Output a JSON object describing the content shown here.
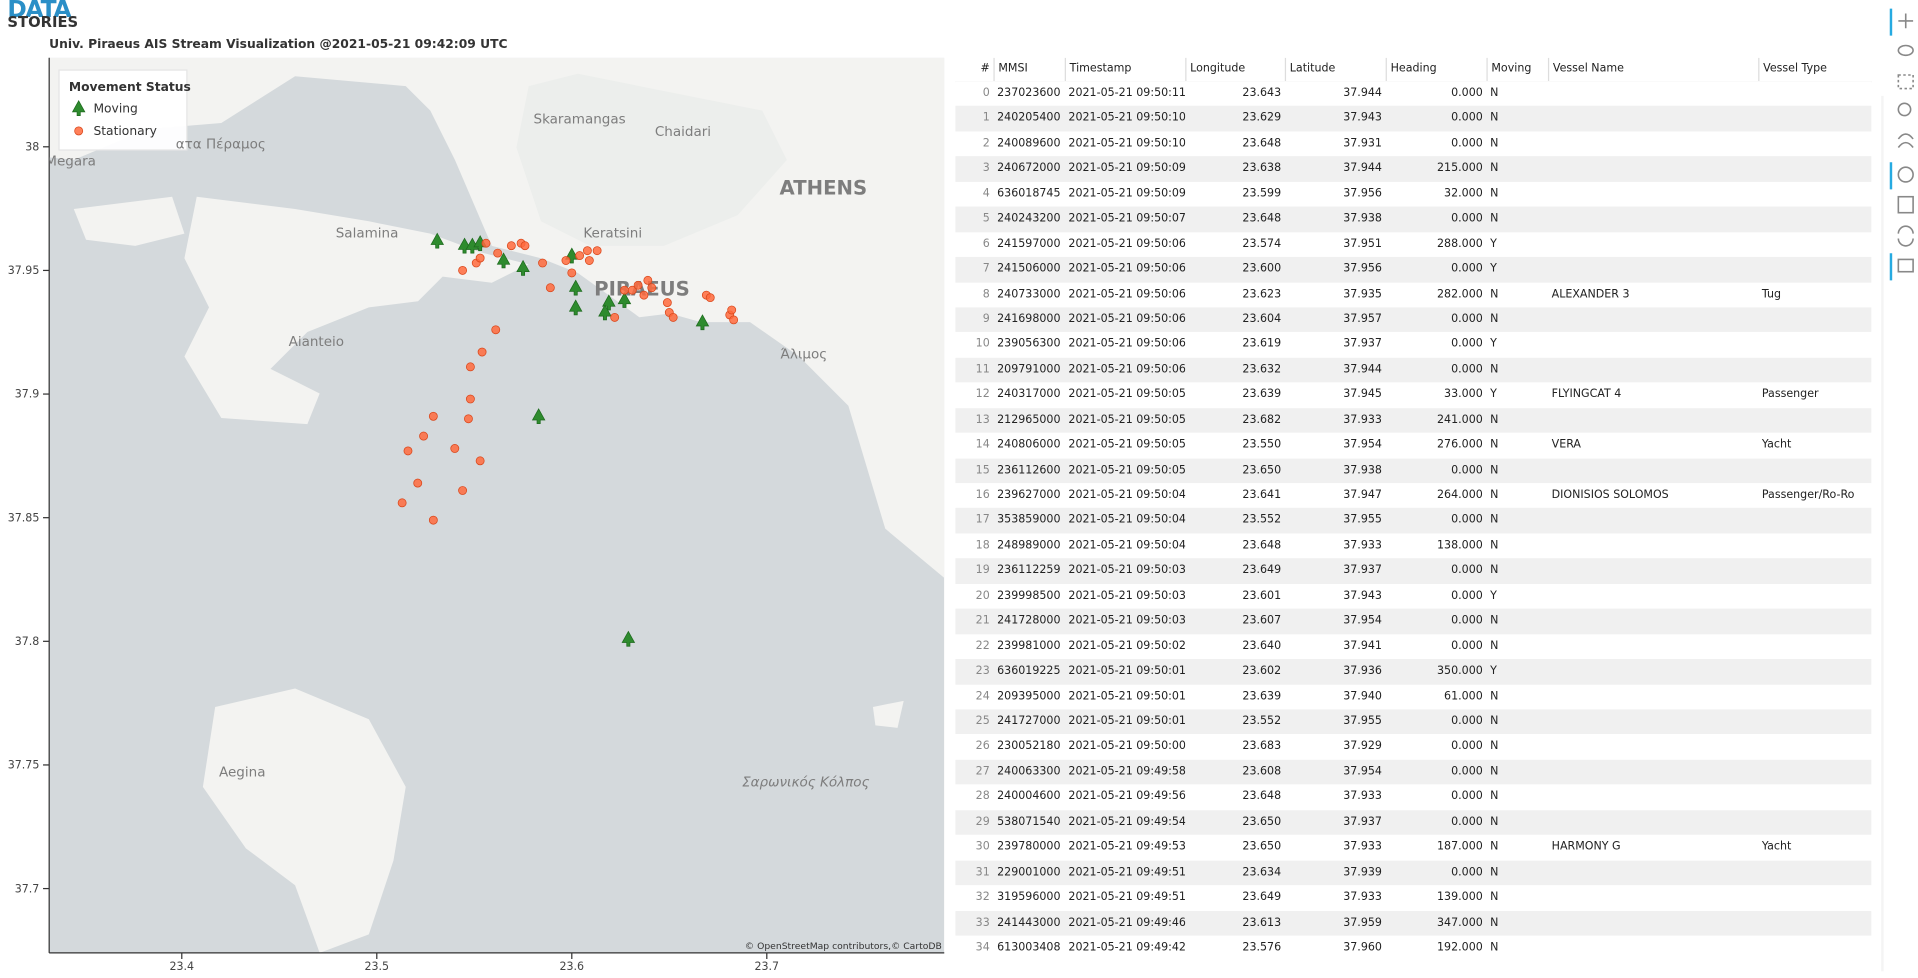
{
  "header": {
    "logo_top": "DATA",
    "logo_bottom": "STORIES",
    "title": "Univ. Piraeus AIS Stream Visualization @2021-05-21 09:42:09 UTC"
  },
  "chart_data": {
    "type": "scatter",
    "xlim": [
      23.332,
      23.791
    ],
    "ylim": [
      37.674,
      38.036
    ],
    "xticks": [
      23.4,
      23.5,
      23.6,
      23.7
    ],
    "yticks": [
      37.7,
      37.75,
      37.8,
      37.85,
      37.9,
      37.95,
      38
    ],
    "legend_title": "Movement Status",
    "legend": "top-left",
    "attribution": "© OpenStreetMap contributors,© CartoDB",
    "annotations": [
      {
        "text": "Skaramangas",
        "x": 23.604,
        "y": 38.011
      },
      {
        "text": "Chaidari",
        "x": 23.657,
        "y": 38.006
      },
      {
        "text": "ATHENS",
        "x": 23.729,
        "y": 37.983
      },
      {
        "text": "Salamina",
        "x": 23.495,
        "y": 37.965
      },
      {
        "text": "Keratsini",
        "x": 23.621,
        "y": 37.965
      },
      {
        "text": "PIRAEUS",
        "x": 23.636,
        "y": 37.942
      },
      {
        "text": "Aianteio",
        "x": 23.469,
        "y": 37.921
      },
      {
        "text": "Άλιμος",
        "x": 23.719,
        "y": 37.916
      },
      {
        "text": "Aegina",
        "x": 23.431,
        "y": 37.747
      },
      {
        "text": "Σαρωνικός Κόλπος",
        "x": 23.72,
        "y": 37.743
      },
      {
        "text": "Megara",
        "x": 23.343,
        "y": 37.994
      },
      {
        "text": "ατα Πέραμος",
        "x": 23.42,
        "y": 38.001
      }
    ],
    "series": [
      {
        "name": "Moving",
        "color": "#2e8b2e",
        "marker": "triangle",
        "x": [
          23.531,
          23.545,
          23.549,
          23.553,
          23.565,
          23.575,
          23.6,
          23.602,
          23.602,
          23.619,
          23.617,
          23.627,
          23.667,
          23.583,
          23.629
        ],
        "y": [
          37.962,
          37.96,
          37.96,
          37.961,
          37.954,
          37.951,
          37.956,
          37.943,
          37.935,
          37.937,
          37.933,
          37.938,
          37.929,
          37.891,
          37.801
        ]
      },
      {
        "name": "Stationary",
        "color": "#ff6a3d",
        "marker": "circle",
        "x": [
          23.561,
          23.554,
          23.548,
          23.548,
          23.547,
          23.54,
          23.529,
          23.524,
          23.516,
          23.553,
          23.521,
          23.544,
          23.513,
          23.529,
          23.544,
          23.551,
          23.553,
          23.556,
          23.562,
          23.569,
          23.574,
          23.576,
          23.585,
          23.589,
          23.597,
          23.6,
          23.604,
          23.608,
          23.613,
          23.609,
          23.622,
          23.627,
          23.631,
          23.634,
          23.639,
          23.641,
          23.637,
          23.649,
          23.65,
          23.652,
          23.669,
          23.671,
          23.681,
          23.683,
          23.682
        ],
        "y": [
          37.926,
          37.917,
          37.911,
          37.898,
          37.89,
          37.878,
          37.891,
          37.883,
          37.877,
          37.873,
          37.864,
          37.861,
          37.856,
          37.849,
          37.95,
          37.953,
          37.955,
          37.961,
          37.957,
          37.96,
          37.961,
          37.96,
          37.953,
          37.943,
          37.954,
          37.949,
          37.956,
          37.958,
          37.958,
          37.954,
          37.931,
          37.942,
          37.942,
          37.944,
          37.946,
          37.943,
          37.94,
          37.937,
          37.933,
          37.931,
          37.94,
          37.939,
          37.932,
          37.93,
          37.934
        ]
      }
    ]
  },
  "table": {
    "columns": [
      "#",
      "MMSI",
      "Timestamp",
      "Longitude",
      "Latitude",
      "Heading",
      "Moving",
      "Vessel Name",
      "Vessel Type"
    ],
    "rows": [
      [
        "0",
        "237023600",
        "2021-05-21 09:50:11",
        "23.643",
        "37.944",
        "0.000",
        "N"
      ],
      [
        "1",
        "240205400",
        "2021-05-21 09:50:10",
        "23.629",
        "37.943",
        "0.000",
        "N"
      ],
      [
        "2",
        "240089600",
        "2021-05-21 09:50:10",
        "23.648",
        "37.931",
        "0.000",
        "N"
      ],
      [
        "3",
        "240672000",
        "2021-05-21 09:50:09",
        "23.638",
        "37.944",
        "215.000",
        "N"
      ],
      [
        "4",
        "636018745",
        "2021-05-21 09:50:09",
        "23.599",
        "37.956",
        "32.000",
        "N"
      ],
      [
        "5",
        "240243200",
        "2021-05-21 09:50:07",
        "23.648",
        "37.938",
        "0.000",
        "N"
      ],
      [
        "6",
        "241597000",
        "2021-05-21 09:50:06",
        "23.574",
        "37.951",
        "288.000",
        "Y"
      ],
      [
        "7",
        "241506000",
        "2021-05-21 09:50:06",
        "23.600",
        "37.956",
        "0.000",
        "Y"
      ],
      [
        "8",
        "240733000",
        "2021-05-21 09:50:06",
        "23.623",
        "37.935",
        "282.000",
        "N",
        "ALEXANDER 3",
        "Tug"
      ],
      [
        "9",
        "241698000",
        "2021-05-21 09:50:06",
        "23.604",
        "37.957",
        "0.000",
        "N"
      ],
      [
        "10",
        "239056300",
        "2021-05-21 09:50:06",
        "23.619",
        "37.937",
        "0.000",
        "Y"
      ],
      [
        "11",
        "209791000",
        "2021-05-21 09:50:06",
        "23.632",
        "37.944",
        "0.000",
        "N"
      ],
      [
        "12",
        "240317000",
        "2021-05-21 09:50:05",
        "23.639",
        "37.945",
        "33.000",
        "Y",
        "FLYINGCAT 4",
        "Passenger"
      ],
      [
        "13",
        "212965000",
        "2021-05-21 09:50:05",
        "23.682",
        "37.933",
        "241.000",
        "N"
      ],
      [
        "14",
        "240806000",
        "2021-05-21 09:50:05",
        "23.550",
        "37.954",
        "276.000",
        "N",
        "VERA",
        "Yacht"
      ],
      [
        "15",
        "236112600",
        "2021-05-21 09:50:05",
        "23.650",
        "37.938",
        "0.000",
        "N"
      ],
      [
        "16",
        "239627000",
        "2021-05-21 09:50:04",
        "23.641",
        "37.947",
        "264.000",
        "N",
        "DIONISIOS SOLOMOS",
        "Passenger/Ro-Ro"
      ],
      [
        "17",
        "353859000",
        "2021-05-21 09:50:04",
        "23.552",
        "37.955",
        "0.000",
        "N"
      ],
      [
        "18",
        "248989000",
        "2021-05-21 09:50:04",
        "23.648",
        "37.933",
        "138.000",
        "N"
      ],
      [
        "19",
        "236112259",
        "2021-05-21 09:50:03",
        "23.649",
        "37.937",
        "0.000",
        "N"
      ],
      [
        "20",
        "239998500",
        "2021-05-21 09:50:03",
        "23.601",
        "37.943",
        "0.000",
        "Y"
      ],
      [
        "21",
        "241728000",
        "2021-05-21 09:50:03",
        "23.607",
        "37.954",
        "0.000",
        "N"
      ],
      [
        "22",
        "239981000",
        "2021-05-21 09:50:02",
        "23.640",
        "37.941",
        "0.000",
        "N"
      ],
      [
        "23",
        "636019225",
        "2021-05-21 09:50:01",
        "23.602",
        "37.936",
        "350.000",
        "Y"
      ],
      [
        "24",
        "209395000",
        "2021-05-21 09:50:01",
        "23.639",
        "37.940",
        "61.000",
        "N"
      ],
      [
        "25",
        "241727000",
        "2021-05-21 09:50:01",
        "23.552",
        "37.955",
        "0.000",
        "N"
      ],
      [
        "26",
        "230052180",
        "2021-05-21 09:50:00",
        "23.683",
        "37.929",
        "0.000",
        "N"
      ],
      [
        "27",
        "240063300",
        "2021-05-21 09:49:58",
        "23.608",
        "37.954",
        "0.000",
        "N"
      ],
      [
        "28",
        "240004600",
        "2021-05-21 09:49:56",
        "23.648",
        "37.933",
        "0.000",
        "N"
      ],
      [
        "29",
        "538071540",
        "2021-05-21 09:49:54",
        "23.650",
        "37.937",
        "0.000",
        "N"
      ],
      [
        "30",
        "239780000",
        "2021-05-21 09:49:53",
        "23.650",
        "37.933",
        "187.000",
        "N",
        "HARMONY G",
        "Yacht"
      ],
      [
        "31",
        "229001000",
        "2021-05-21 09:49:51",
        "23.634",
        "37.939",
        "0.000",
        "N"
      ],
      [
        "32",
        "319596000",
        "2021-05-21 09:49:51",
        "23.649",
        "37.933",
        "139.000",
        "N"
      ],
      [
        "33",
        "241443000",
        "2021-05-21 09:49:46",
        "23.613",
        "37.959",
        "347.000",
        "N"
      ],
      [
        "34",
        "613003408",
        "2021-05-21 09:49:42",
        "23.576",
        "37.960",
        "192.000",
        "N"
      ]
    ]
  }
}
